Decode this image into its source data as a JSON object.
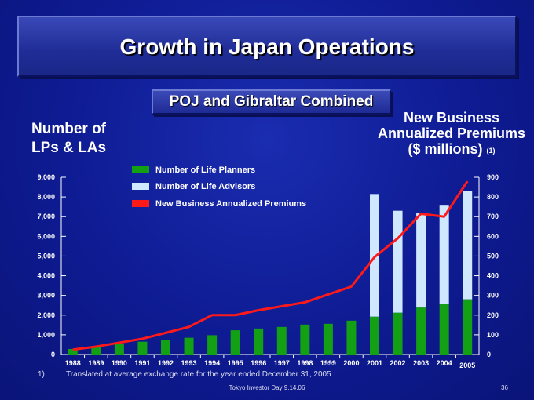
{
  "slide": {
    "title": "Growth in Japan Operations",
    "subtitle": "POJ and Gibraltar Combined",
    "footnote_marker": "1)",
    "footnote": "Translated at average exchange rate for the year ended December 31, 2005",
    "footer": "Tokyo Investor Day 9.14.06",
    "page_number": "36"
  },
  "chart_data": {
    "type": "bar",
    "stacked": true,
    "left_axis": {
      "title_line1": "Number of",
      "title_line2": "LPs & LAs",
      "ylim": [
        0,
        9000
      ],
      "ticks": [
        "0",
        "1,000",
        "2,000",
        "3,000",
        "4,000",
        "5,000",
        "6,000",
        "7,000",
        "8,000",
        "9,000"
      ]
    },
    "right_axis": {
      "title_line1": "New Business",
      "title_line2": "Annualized Premiums",
      "title_line3": "($ millions)",
      "title_sup": "(1)",
      "ylim": [
        0,
        900
      ],
      "ticks": [
        "0",
        "100",
        "200",
        "300",
        "400",
        "500",
        "600",
        "700",
        "800",
        "900"
      ]
    },
    "categories": [
      "1988",
      "1989",
      "1990",
      "1991",
      "1992",
      "1993",
      "1994",
      "1995",
      "1996",
      "1997",
      "1998",
      "1999",
      "2000",
      "2001",
      "2002",
      "2003",
      "2004",
      "2005"
    ],
    "series": [
      {
        "name": "Number of Life Planners",
        "kind": "bar",
        "color": "#14a014",
        "values": [
          280,
          380,
          520,
          650,
          740,
          850,
          980,
          1230,
          1320,
          1400,
          1520,
          1560,
          1720,
          1920,
          2120,
          2380,
          2560,
          2800
        ]
      },
      {
        "name": "Number of Life Advisors",
        "kind": "bar",
        "color": "#cfe8ff",
        "values": [
          0,
          0,
          0,
          0,
          0,
          0,
          0,
          0,
          0,
          0,
          0,
          0,
          0,
          6230,
          5180,
          4800,
          5000,
          5500
        ]
      },
      {
        "name": "New Business Annualized Premiums",
        "kind": "line",
        "axis": "right",
        "color": "#ff1a1a",
        "values": [
          25,
          40,
          60,
          80,
          110,
          140,
          200,
          200,
          225,
          245,
          265,
          305,
          345,
          495,
          590,
          715,
          700,
          880
        ]
      }
    ]
  }
}
